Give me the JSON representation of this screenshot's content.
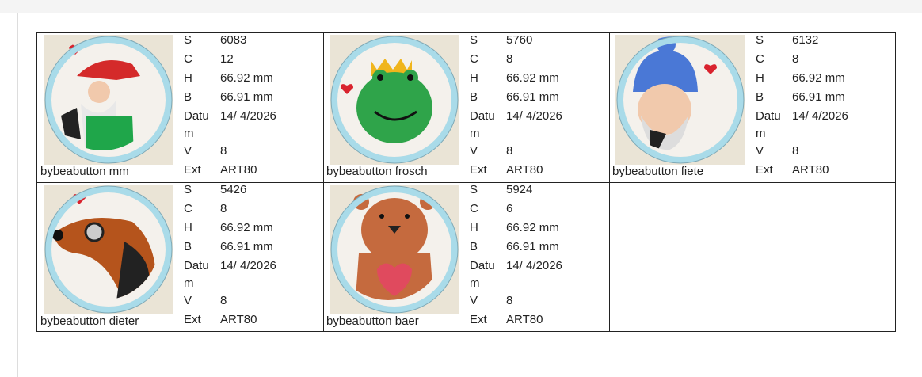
{
  "items": [
    {
      "name": "bybeabutton mm",
      "fields": [
        {
          "label": "S",
          "value": "6083"
        },
        {
          "label": "C",
          "value": "12"
        },
        {
          "label": "H",
          "value": "66.92 mm"
        },
        {
          "label": "B",
          "value": "66.91 mm"
        },
        {
          "label": "Datum",
          "value": "14/ 4/2026"
        },
        {
          "label": "V",
          "value": "8"
        },
        {
          "label": "Ext",
          "value": "ART80"
        }
      ]
    },
    {
      "name": "bybeabutton frosch",
      "fields": [
        {
          "label": "S",
          "value": "5760"
        },
        {
          "label": "C",
          "value": "8"
        },
        {
          "label": "H",
          "value": "66.92 mm"
        },
        {
          "label": "B",
          "value": "66.91 mm"
        },
        {
          "label": "Datum",
          "value": "14/ 4/2026"
        },
        {
          "label": "V",
          "value": "8"
        },
        {
          "label": "Ext",
          "value": "ART80"
        }
      ]
    },
    {
      "name": "bybeabutton fiete",
      "fields": [
        {
          "label": "S",
          "value": "6132"
        },
        {
          "label": "C",
          "value": "8"
        },
        {
          "label": "H",
          "value": "66.92 mm"
        },
        {
          "label": "B",
          "value": "66.91 mm"
        },
        {
          "label": "Datum",
          "value": "14/ 4/2026"
        },
        {
          "label": "V",
          "value": "8"
        },
        {
          "label": "Ext",
          "value": "ART80"
        }
      ]
    },
    {
      "name": "bybeabutton dieter",
      "fields": [
        {
          "label": "S",
          "value": "5426"
        },
        {
          "label": "C",
          "value": "8"
        },
        {
          "label": "H",
          "value": "66.92 mm"
        },
        {
          "label": "B",
          "value": "66.91 mm"
        },
        {
          "label": "Datum",
          "value": "14/ 4/2026"
        },
        {
          "label": "V",
          "value": "8"
        },
        {
          "label": "Ext",
          "value": "ART80"
        }
      ]
    },
    {
      "name": "bybeabutton baer",
      "fields": [
        {
          "label": "S",
          "value": "5924"
        },
        {
          "label": "C",
          "value": "6"
        },
        {
          "label": "H",
          "value": "66.92 mm"
        },
        {
          "label": "B",
          "value": "66.91 mm"
        },
        {
          "label": "Datum",
          "value": "14/ 4/2026"
        },
        {
          "label": "V",
          "value": "8"
        },
        {
          "label": "Ext",
          "value": "ART80"
        }
      ]
    }
  ]
}
